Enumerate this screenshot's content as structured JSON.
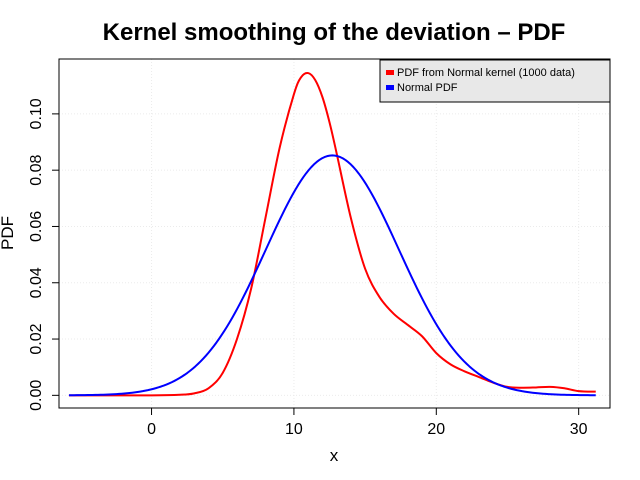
{
  "chart_data": {
    "type": "line",
    "title": "Kernel smoothing of the deviation – PDF",
    "xlabel": "x",
    "ylabel": "PDF",
    "xlim": [
      -6.5,
      32.2
    ],
    "ylim": [
      -0.0045,
      0.1195
    ],
    "x_ticks": [
      0,
      10,
      20,
      30
    ],
    "x_tick_labels": [
      "0",
      "10",
      "20",
      "30"
    ],
    "y_ticks": [
      0.0,
      0.02,
      0.04,
      0.06,
      0.08,
      0.1
    ],
    "y_tick_labels": [
      "0.00",
      "0.02",
      "0.04",
      "0.06",
      "0.08",
      "0.10"
    ],
    "grid": true,
    "legend_position": "top-right",
    "series": [
      {
        "name": "PDF from Normal kernel (1000 data)",
        "color": "#ff0000",
        "x": [
          -5.8,
          0,
          2,
          3,
          4,
          5,
          6,
          7,
          8,
          9,
          10,
          10.5,
          11,
          11.5,
          12,
          12.5,
          13,
          14,
          15,
          16,
          17,
          18,
          19,
          20,
          21,
          22,
          23,
          24,
          25,
          26,
          27,
          28,
          29,
          30,
          31.2
        ],
        "y": [
          0.0,
          0.0,
          0.0002,
          0.0007,
          0.0025,
          0.008,
          0.02,
          0.038,
          0.063,
          0.088,
          0.107,
          0.113,
          0.1145,
          0.112,
          0.106,
          0.097,
          0.086,
          0.063,
          0.045,
          0.035,
          0.029,
          0.025,
          0.021,
          0.015,
          0.011,
          0.0085,
          0.0065,
          0.0045,
          0.003,
          0.0027,
          0.0028,
          0.003,
          0.0025,
          0.0015,
          0.0013
        ]
      },
      {
        "name": "Normal PDF",
        "color": "#0000ff",
        "mean": 12.7,
        "sd": 4.68,
        "x_range": [
          -5.8,
          31.2
        ]
      }
    ]
  }
}
